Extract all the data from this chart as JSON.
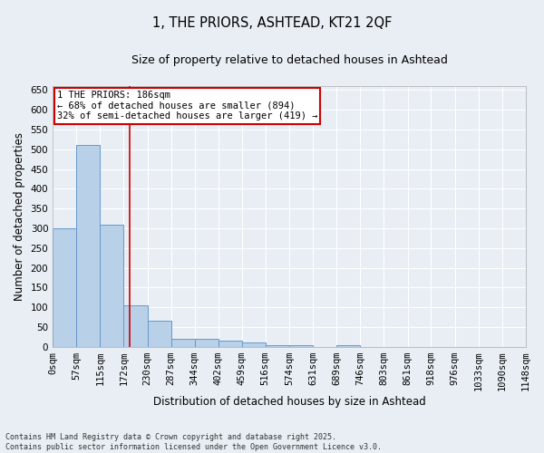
{
  "title_line1": "1, THE PRIORS, ASHTEAD, KT21 2QF",
  "title_line2": "Size of property relative to detached houses in Ashtead",
  "xlabel": "Distribution of detached houses by size in Ashtead",
  "ylabel": "Number of detached properties",
  "bar_edges": [
    0,
    57,
    115,
    172,
    230,
    287,
    344,
    402,
    459,
    516,
    574,
    631,
    689,
    746,
    803,
    861,
    918,
    976,
    1033,
    1090,
    1148
  ],
  "bar_heights": [
    300,
    510,
    310,
    105,
    65,
    20,
    20,
    15,
    10,
    5,
    5,
    0,
    5,
    0,
    0,
    0,
    0,
    0,
    0,
    0
  ],
  "bar_color": "#b8d0e8",
  "bar_edge_color": "#6699cc",
  "vline_x": 186,
  "vline_color": "#cc0000",
  "annotation_text": "1 THE PRIORS: 186sqm\n← 68% of detached houses are smaller (894)\n32% of semi-detached houses are larger (419) →",
  "annotation_box_color": "#cc0000",
  "ylim": [
    0,
    660
  ],
  "yticks": [
    0,
    50,
    100,
    150,
    200,
    250,
    300,
    350,
    400,
    450,
    500,
    550,
    600,
    650
  ],
  "tick_label_fontsize": 7.5,
  "axis_label_fontsize": 8.5,
  "title1_fontsize": 10.5,
  "title2_fontsize": 9,
  "footer_text": "Contains HM Land Registry data © Crown copyright and database right 2025.\nContains public sector information licensed under the Open Government Licence v3.0.",
  "background_color": "#e8eef4",
  "plot_background": "#e8eef4",
  "grid_color": "#ffffff"
}
